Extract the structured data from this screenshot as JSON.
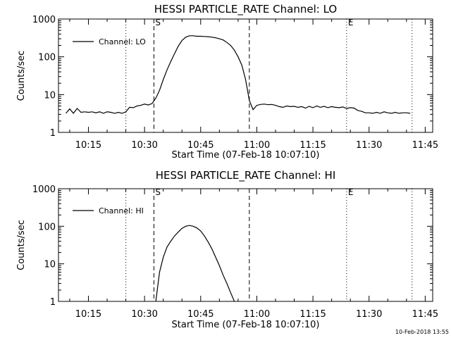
{
  "footer_timestamp": "10-Feb-2018 13:55",
  "chart_data": [
    {
      "type": "line",
      "title": "HESSI PARTICLE_RATE Channel: LO",
      "xlabel": "Start Time (07-Feb-18 10:07:10)",
      "ylabel": "Counts/sec",
      "y_scale": "log",
      "ylim": [
        1,
        1000
      ],
      "y_ticks": [
        {
          "value": 1,
          "label": "1"
        },
        {
          "value": 10,
          "label": "10"
        },
        {
          "value": 100,
          "label": "100"
        },
        {
          "value": 1000,
          "label": "1000"
        }
      ],
      "xlim": [
        "10:07",
        "11:47"
      ],
      "x_ticks": [
        "10:15",
        "10:30",
        "10:45",
        "11:00",
        "11:15",
        "11:30",
        "11:45"
      ],
      "legend": {
        "position": "top-left",
        "entries": [
          "Channel: LO"
        ]
      },
      "markers": [
        {
          "time": "10:25",
          "style": "dotted",
          "label": ""
        },
        {
          "time": "10:32.5",
          "style": "dashed",
          "label": "S"
        },
        {
          "time": "10:58",
          "style": "dashed",
          "label": ""
        },
        {
          "time": "11:24",
          "style": "dotted",
          "label": "E"
        },
        {
          "time": "11:41.5",
          "style": "dotted",
          "label": ""
        }
      ],
      "series": [
        {
          "name": "Channel: LO",
          "x": [
            "10:09",
            "10:10",
            "10:11",
            "10:12",
            "10:13",
            "10:14",
            "10:15",
            "10:16",
            "10:17",
            "10:18",
            "10:19",
            "10:20",
            "10:21",
            "10:22",
            "10:23",
            "10:24",
            "10:25",
            "10:26",
            "10:27",
            "10:28",
            "10:29",
            "10:30",
            "10:31",
            "10:32",
            "10:33",
            "10:34",
            "10:35",
            "10:36",
            "10:37",
            "10:38",
            "10:39",
            "10:40",
            "10:41",
            "10:42",
            "10:43",
            "10:44",
            "10:45",
            "10:46",
            "10:47",
            "10:48",
            "10:49",
            "10:50",
            "10:51",
            "10:52",
            "10:53",
            "10:54",
            "10:55",
            "10:56",
            "10:57",
            "10:58",
            "10:59",
            "11:00",
            "11:01",
            "11:02",
            "11:03",
            "11:04",
            "11:05",
            "11:06",
            "11:07",
            "11:08",
            "11:09",
            "11:10",
            "11:11",
            "11:12",
            "11:13",
            "11:14",
            "11:15",
            "11:16",
            "11:17",
            "11:18",
            "11:19",
            "11:20",
            "11:21",
            "11:22",
            "11:23",
            "11:24",
            "11:25",
            "11:26",
            "11:27",
            "11:28",
            "11:29",
            "11:30",
            "11:31",
            "11:32",
            "11:33",
            "11:34",
            "11:35",
            "11:36",
            "11:37",
            "11:38",
            "11:39",
            "11:40",
            "11:41"
          ],
          "values": [
            3.2,
            4.2,
            3.2,
            4.3,
            3.4,
            3.5,
            3.4,
            3.5,
            3.3,
            3.5,
            3.2,
            3.5,
            3.4,
            3.2,
            3.4,
            3.2,
            3.5,
            4.6,
            4.5,
            5.0,
            5.2,
            5.6,
            5.3,
            5.8,
            8,
            13,
            25,
            45,
            75,
            120,
            190,
            270,
            330,
            360,
            360,
            350,
            350,
            345,
            340,
            330,
            320,
            300,
            280,
            240,
            200,
            150,
            100,
            60,
            25,
            7,
            4,
            5.2,
            5.5,
            5.6,
            5.4,
            5.5,
            5.2,
            4.8,
            4.6,
            5.0,
            4.8,
            4.9,
            4.6,
            4.8,
            4.4,
            4.9,
            4.5,
            5.0,
            4.6,
            4.9,
            4.5,
            4.8,
            4.6,
            4.5,
            4.7,
            4.3,
            4.5,
            4.4,
            3.8,
            3.6,
            3.3,
            3.3,
            3.2,
            3.4,
            3.2,
            3.5,
            3.3,
            3.2,
            3.4,
            3.2,
            3.3,
            3.3,
            3.2
          ]
        }
      ]
    },
    {
      "type": "line",
      "title": "HESSI PARTICLE_RATE Channel: HI",
      "xlabel": "Start Time (07-Feb-18 10:07:10)",
      "ylabel": "Counts/sec",
      "y_scale": "log",
      "ylim": [
        1,
        1000
      ],
      "y_ticks": [
        {
          "value": 1,
          "label": "1"
        },
        {
          "value": 10,
          "label": "10"
        },
        {
          "value": 100,
          "label": "100"
        },
        {
          "value": 1000,
          "label": "1000"
        }
      ],
      "xlim": [
        "10:07",
        "11:47"
      ],
      "x_ticks": [
        "10:15",
        "10:30",
        "10:45",
        "11:00",
        "11:15",
        "11:30",
        "11:45"
      ],
      "legend": {
        "position": "top-left",
        "entries": [
          "Channel: HI"
        ]
      },
      "markers": [
        {
          "time": "10:25",
          "style": "dotted",
          "label": ""
        },
        {
          "time": "10:32.5",
          "style": "dashed",
          "label": "S"
        },
        {
          "time": "10:58",
          "style": "dashed",
          "label": ""
        },
        {
          "time": "11:24",
          "style": "dotted",
          "label": "E"
        },
        {
          "time": "11:41.5",
          "style": "dotted",
          "label": ""
        }
      ],
      "series": [
        {
          "name": "Channel: HI",
          "x": [
            "10:33",
            "10:34",
            "10:35",
            "10:36",
            "10:37",
            "10:38",
            "10:39",
            "10:40",
            "10:41",
            "10:42",
            "10:43",
            "10:44",
            "10:45",
            "10:46",
            "10:47",
            "10:48",
            "10:49",
            "10:50",
            "10:51",
            "10:52",
            "10:53",
            "10:54"
          ],
          "values": [
            1.0,
            6,
            15,
            28,
            40,
            55,
            70,
            88,
            100,
            105,
            100,
            90,
            75,
            55,
            38,
            25,
            15,
            9,
            5,
            3,
            1.7,
            1.0
          ]
        }
      ]
    }
  ]
}
